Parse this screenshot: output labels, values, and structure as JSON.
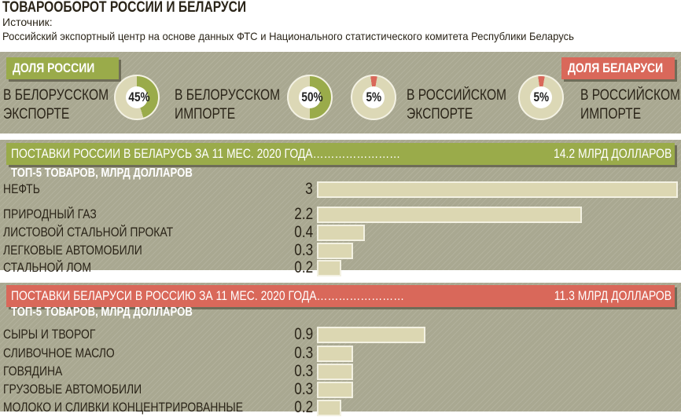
{
  "header": {
    "title": "ТОВАРООБОРОТ РОССИИ И БЕЛАРУСИ",
    "source_label": "Источник:",
    "source_text": "Российский экспортный центр на основе данных ФТС и Национального статистического комитета Республики Беларусь"
  },
  "shares": {
    "russia_tag": "ДОЛЯ РОССИИ",
    "belarus_tag": "ДОЛЯ БЕЛАРУСИ",
    "colors": {
      "russia": "#9aab4a",
      "belarus": "#d9685a",
      "base": "#dcd8b6"
    },
    "items": [
      {
        "l1": "В БЕЛОРУССКОМ",
        "l2": "ЭКСПОРТЕ",
        "pct": 45,
        "label": "45%"
      },
      {
        "l1": "В БЕЛОРУССКОМ",
        "l2": "ИМПОРТЕ",
        "pct": 50,
        "label": "50%"
      },
      {
        "l1": "В РОССИЙСКОМ",
        "l2": "ЭКСПОРТЕ",
        "pct": 5,
        "label": "5%"
      },
      {
        "l1": "В РОССИЙСКОМ",
        "l2": "ИМПОРТЕ",
        "pct": 5,
        "label": "5%"
      }
    ]
  },
  "chart_data": [
    {
      "type": "bar",
      "title": "ПОСТАВКИ РОССИИ В БЕЛАРУСЬ ЗА 11 МЕС. 2020 ГОДА",
      "total": "14.2 МЛРД ДОЛЛАРОВ",
      "subtitle": "ТОП-5 ТОВАРОВ, МЛРД ДОЛЛАРОВ",
      "categories": [
        "НЕФТЬ",
        "ПРИРОДНЫЙ ГАЗ",
        "ЛИСТОВОЙ СТАЛЬНОЙ ПРОКАТ",
        "ЛЕГКОВЫЕ АВТОМОБИЛИ",
        "СТАЛЬНОЙ ЛОМ"
      ],
      "values": [
        3,
        2.2,
        0.4,
        0.3,
        0.2
      ],
      "labels": [
        "3",
        "2.2",
        "0.4",
        "0.3",
        "0.2"
      ],
      "xlim": [
        0,
        3
      ]
    },
    {
      "type": "bar",
      "title": "ПОСТАВКИ БЕЛАРУСИ В РОССИЮ ЗА 11 МЕС. 2020 ГОДА",
      "total": "11.3 МЛРД ДОЛЛАРОВ",
      "subtitle": "ТОП-5 ТОВАРОВ, МЛРД ДОЛЛАРОВ",
      "categories": [
        "СЫРЫ И ТВОРОГ",
        "СЛИВОЧНОЕ МАСЛО",
        "ГОВЯДИНА",
        "ГРУЗОВЫЕ АВТОМОБИЛИ",
        "МОЛОКО И СЛИВКИ КОНЦЕНТРИРОВАННЫЕ"
      ],
      "values": [
        0.9,
        0.3,
        0.3,
        0.3,
        0.2
      ],
      "labels": [
        "0.9",
        "0.3",
        "0.3",
        "0.3",
        "0.2"
      ],
      "xlim": [
        0,
        3
      ]
    }
  ]
}
